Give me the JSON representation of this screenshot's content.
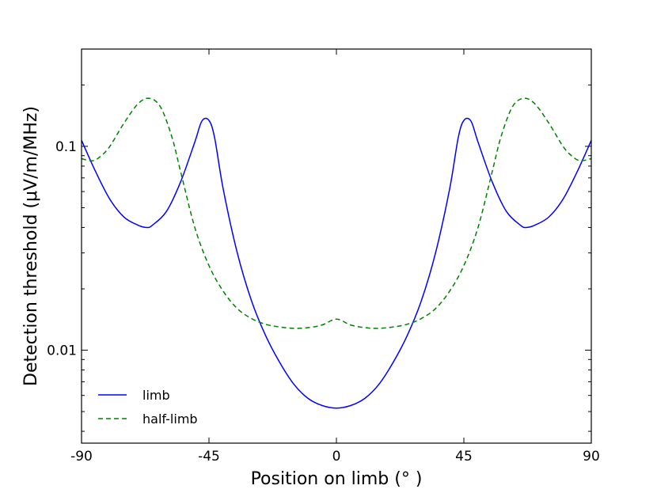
{
  "chart_data": {
    "type": "line",
    "xlabel": "Position on limb (° )",
    "ylabel": "Detection threshold (μV/m/MHz)",
    "x_scale": "linear",
    "y_scale": "log",
    "xlim": [
      -90,
      90
    ],
    "ylim": [
      0.0035,
      0.3
    ],
    "x_ticks": [
      {
        "value": -90,
        "label": "-90"
      },
      {
        "value": -45,
        "label": "-45"
      },
      {
        "value": 0,
        "label": "0"
      },
      {
        "value": 45,
        "label": "45"
      },
      {
        "value": 90,
        "label": "90"
      }
    ],
    "y_ticks": [
      {
        "value": 0.01,
        "label": "0.01"
      },
      {
        "value": 0.1,
        "label": "0.1"
      }
    ],
    "legend_position": "lower-left",
    "series": [
      {
        "name": "limb",
        "color": "#0000ff",
        "style": "solid",
        "x": [
          -90,
          -85,
          -80,
          -75,
          -70,
          -67,
          -65,
          -60,
          -55,
          -50,
          -47.5,
          -45,
          -43,
          -40,
          -35,
          -30,
          -25,
          -20,
          -15,
          -10,
          -5,
          0,
          5,
          10,
          15,
          20,
          25,
          30,
          35,
          40,
          43,
          45,
          47.5,
          50,
          55,
          60,
          65,
          67,
          70,
          75,
          80,
          85,
          90
        ],
        "y": [
          0.107,
          0.075,
          0.055,
          0.045,
          0.041,
          0.04,
          0.041,
          0.048,
          0.067,
          0.105,
          0.133,
          0.134,
          0.11,
          0.062,
          0.03,
          0.0175,
          0.0118,
          0.0087,
          0.0068,
          0.0058,
          0.00535,
          0.0052,
          0.00535,
          0.0058,
          0.0068,
          0.0087,
          0.0118,
          0.0175,
          0.03,
          0.062,
          0.11,
          0.134,
          0.133,
          0.105,
          0.067,
          0.048,
          0.041,
          0.04,
          0.041,
          0.045,
          0.055,
          0.075,
          0.107
        ]
      },
      {
        "name": "half-limb",
        "color": "#008000",
        "style": "dashed",
        "x": [
          -90,
          -86,
          -83,
          -80,
          -75,
          -70,
          -66,
          -62,
          -58,
          -55,
          -50,
          -45,
          -40,
          -35,
          -30,
          -25,
          -20,
          -15,
          -10,
          -5,
          0,
          5,
          10,
          15,
          20,
          25,
          30,
          35,
          40,
          45,
          50,
          55,
          58,
          62,
          66,
          70,
          75,
          80,
          83,
          86,
          90
        ],
        "y": [
          0.087,
          0.085,
          0.09,
          0.1,
          0.13,
          0.162,
          0.172,
          0.155,
          0.11,
          0.075,
          0.04,
          0.026,
          0.0195,
          0.016,
          0.0143,
          0.0134,
          0.013,
          0.0128,
          0.0129,
          0.0133,
          0.0142,
          0.0133,
          0.0129,
          0.0128,
          0.013,
          0.0134,
          0.0143,
          0.016,
          0.0195,
          0.026,
          0.04,
          0.075,
          0.11,
          0.155,
          0.172,
          0.162,
          0.13,
          0.1,
          0.09,
          0.085,
          0.087
        ]
      }
    ]
  }
}
